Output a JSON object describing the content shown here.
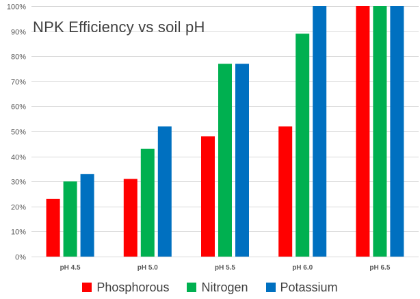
{
  "chart_data": {
    "type": "bar",
    "title": "NPK Efficiency vs soil pH",
    "categories": [
      "pH 4.5",
      "pH 5.0",
      "pH 5.5",
      "pH 6.0",
      "pH 6.5"
    ],
    "series": [
      {
        "name": "Phosphorous",
        "color": "#ff0000",
        "values": [
          23,
          31,
          48,
          52,
          100
        ]
      },
      {
        "name": "Nitrogen",
        "color": "#00b050",
        "values": [
          30,
          43,
          77,
          89,
          100
        ]
      },
      {
        "name": "Potassium",
        "color": "#0070c0",
        "values": [
          33,
          52,
          77,
          100,
          100
        ]
      }
    ],
    "ylim": [
      0,
      100
    ],
    "yticks": [
      "0%",
      "10%",
      "20%",
      "30%",
      "40%",
      "50%",
      "60%",
      "70%",
      "80%",
      "90%",
      "100%"
    ],
    "grid": true,
    "legend_position": "bottom"
  }
}
